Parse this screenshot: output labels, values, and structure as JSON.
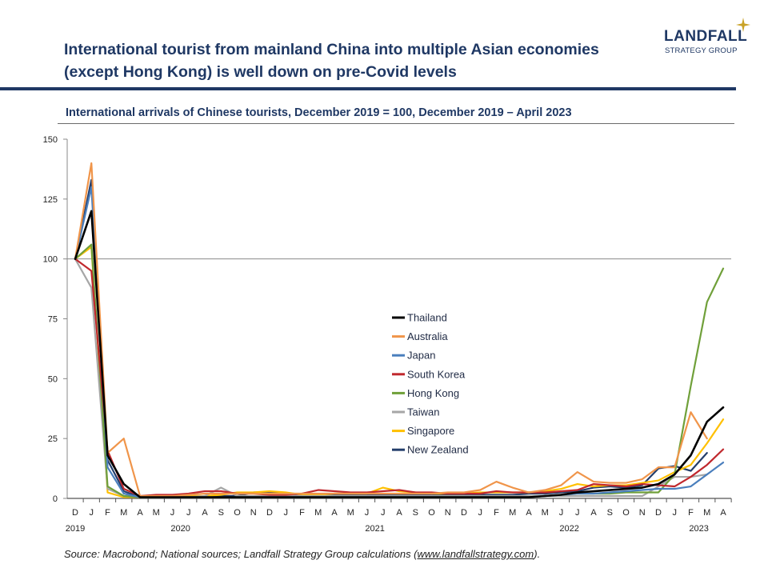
{
  "header": {
    "title_line1": "International tourist from mainland China into multiple Asian economies",
    "title_line2": "(except Hong Kong) is well down on pre-Covid levels",
    "logo_word": "LANDFALL",
    "logo_sub": "STRATEGY GROUP"
  },
  "chart_data": {
    "type": "line",
    "title": "International arrivals of Chinese tourists, December 2019 = 100, December 2019 – April 2023",
    "ylim": [
      0,
      150
    ],
    "yticks": [
      0,
      25,
      50,
      75,
      100,
      125,
      150
    ],
    "reference_line": 100,
    "x": [
      "D",
      "J",
      "F",
      "M",
      "A",
      "M",
      "J",
      "J",
      "A",
      "S",
      "O",
      "N",
      "D",
      "J",
      "F",
      "M",
      "A",
      "M",
      "J",
      "J",
      "A",
      "S",
      "O",
      "N",
      "D",
      "J",
      "F",
      "M",
      "A",
      "M",
      "J",
      "J",
      "A",
      "S",
      "O",
      "N",
      "D",
      "J",
      "F",
      "M",
      "A"
    ],
    "year_labels": [
      {
        "label": "2019",
        "index": 0
      },
      {
        "label": "2020",
        "index": 6.5
      },
      {
        "label": "2021",
        "index": 18.5
      },
      {
        "label": "2022",
        "index": 30.5
      },
      {
        "label": "2023",
        "index": 38.5
      }
    ],
    "legend_position": "center",
    "series": [
      {
        "name": "Thailand",
        "color": "#000000",
        "values": [
          100,
          120,
          18,
          6,
          0.5,
          0.5,
          0.5,
          0.5,
          0.5,
          0.5,
          0.5,
          0.5,
          0.5,
          0.5,
          0.5,
          0.5,
          0.5,
          0.5,
          0.5,
          0.5,
          0.5,
          0.5,
          0.5,
          0.5,
          0.5,
          0.5,
          0.5,
          0.5,
          0.5,
          1,
          1.5,
          2.5,
          3,
          3.5,
          4,
          4.5,
          6,
          10,
          18,
          32,
          38
        ]
      },
      {
        "name": "Australia",
        "color": "#f0954a",
        "values": [
          100,
          140,
          19,
          25,
          1,
          1,
          1,
          1.5,
          2,
          2,
          2,
          2,
          2,
          2,
          2,
          2,
          2,
          2,
          2,
          2,
          2,
          2,
          2,
          2.5,
          2.5,
          3.5,
          7,
          4.5,
          2.5,
          3.5,
          5.5,
          11,
          7,
          6.5,
          6.5,
          8,
          13,
          13,
          36,
          25,
          null
        ]
      },
      {
        "name": "Japan",
        "color": "#4a7fbd",
        "values": [
          100,
          130,
          13,
          2,
          0.5,
          0.5,
          0.5,
          0.5,
          0.5,
          0.5,
          0.5,
          0.5,
          0.5,
          0.5,
          0.5,
          0.5,
          0.5,
          0.5,
          0.5,
          0.5,
          0.5,
          0.5,
          0.5,
          0.5,
          0.5,
          0.5,
          0.5,
          0.5,
          0.5,
          1,
          1.5,
          2,
          2,
          2.5,
          3,
          3.5,
          4,
          4,
          5,
          10,
          15
        ]
      },
      {
        "name": "South Korea",
        "color": "#c0282d",
        "values": [
          100,
          95,
          20,
          4,
          1,
          1.5,
          1.5,
          2,
          3,
          3,
          2,
          2,
          1.5,
          1.5,
          2,
          3.5,
          3,
          2.5,
          2.5,
          3,
          3.5,
          2.5,
          2.5,
          2,
          2,
          2,
          3,
          2.5,
          2.5,
          2.5,
          3,
          3.5,
          6,
          5.5,
          5,
          6,
          5.5,
          5,
          9,
          14,
          20.5
        ]
      },
      {
        "name": "Hong Kong",
        "color": "#70a03a",
        "values": [
          100,
          106,
          5,
          1,
          0.5,
          0.5,
          0.5,
          0.5,
          0.5,
          0.5,
          0.5,
          0.5,
          0.5,
          0.5,
          0.5,
          0.5,
          0.5,
          0.5,
          0.5,
          0.5,
          0.5,
          0.5,
          0.5,
          0.5,
          0.5,
          0.5,
          0.5,
          0.5,
          0.5,
          1,
          1.5,
          2,
          2,
          2,
          2.5,
          2.5,
          2.5,
          10,
          47,
          82,
          96
        ]
      },
      {
        "name": "Taiwan",
        "color": "#a6a6a6",
        "values": [
          100,
          88,
          4,
          1,
          0.5,
          0.5,
          0.5,
          0.5,
          1,
          4.5,
          1,
          1,
          1,
          1,
          1,
          1,
          1,
          1,
          1,
          1,
          1,
          1,
          1,
          1,
          1,
          1,
          1,
          1,
          1,
          1,
          1,
          1,
          1,
          1,
          1,
          1,
          5,
          9,
          9,
          10,
          null
        ]
      },
      {
        "name": "Singapore",
        "color": "#ffc000",
        "values": [
          100,
          105,
          2.5,
          0.5,
          0.5,
          0.5,
          0.5,
          1,
          1,
          1.5,
          2.5,
          2.5,
          3,
          2.5,
          1.5,
          1.5,
          2,
          2,
          2,
          4.5,
          3,
          2.5,
          2,
          2,
          2,
          2.5,
          2.5,
          2.5,
          2.5,
          3,
          4,
          6,
          5,
          5.5,
          5.5,
          6.5,
          7.5,
          11,
          14,
          23,
          33
        ]
      },
      {
        "name": "New Zealand",
        "color": "#243e6b",
        "values": [
          100,
          133,
          16,
          3,
          0.5,
          0.5,
          0.5,
          0.5,
          1,
          1,
          1,
          2.5,
          2.5,
          2,
          1.5,
          1.5,
          1.5,
          1.5,
          1.5,
          1.5,
          1.5,
          1.5,
          1.5,
          1.5,
          1.5,
          1.5,
          1.5,
          1.5,
          2,
          2,
          2.5,
          3,
          4.5,
          5,
          4.5,
          5.5,
          12.5,
          13.5,
          11.5,
          19,
          null
        ]
      }
    ]
  },
  "footer": {
    "source_prefix": "Source: Macrobond; National sources; Landfall Strategy Group calculations (",
    "source_link": "www.landfallstrategy.com",
    "source_suffix": ")."
  }
}
